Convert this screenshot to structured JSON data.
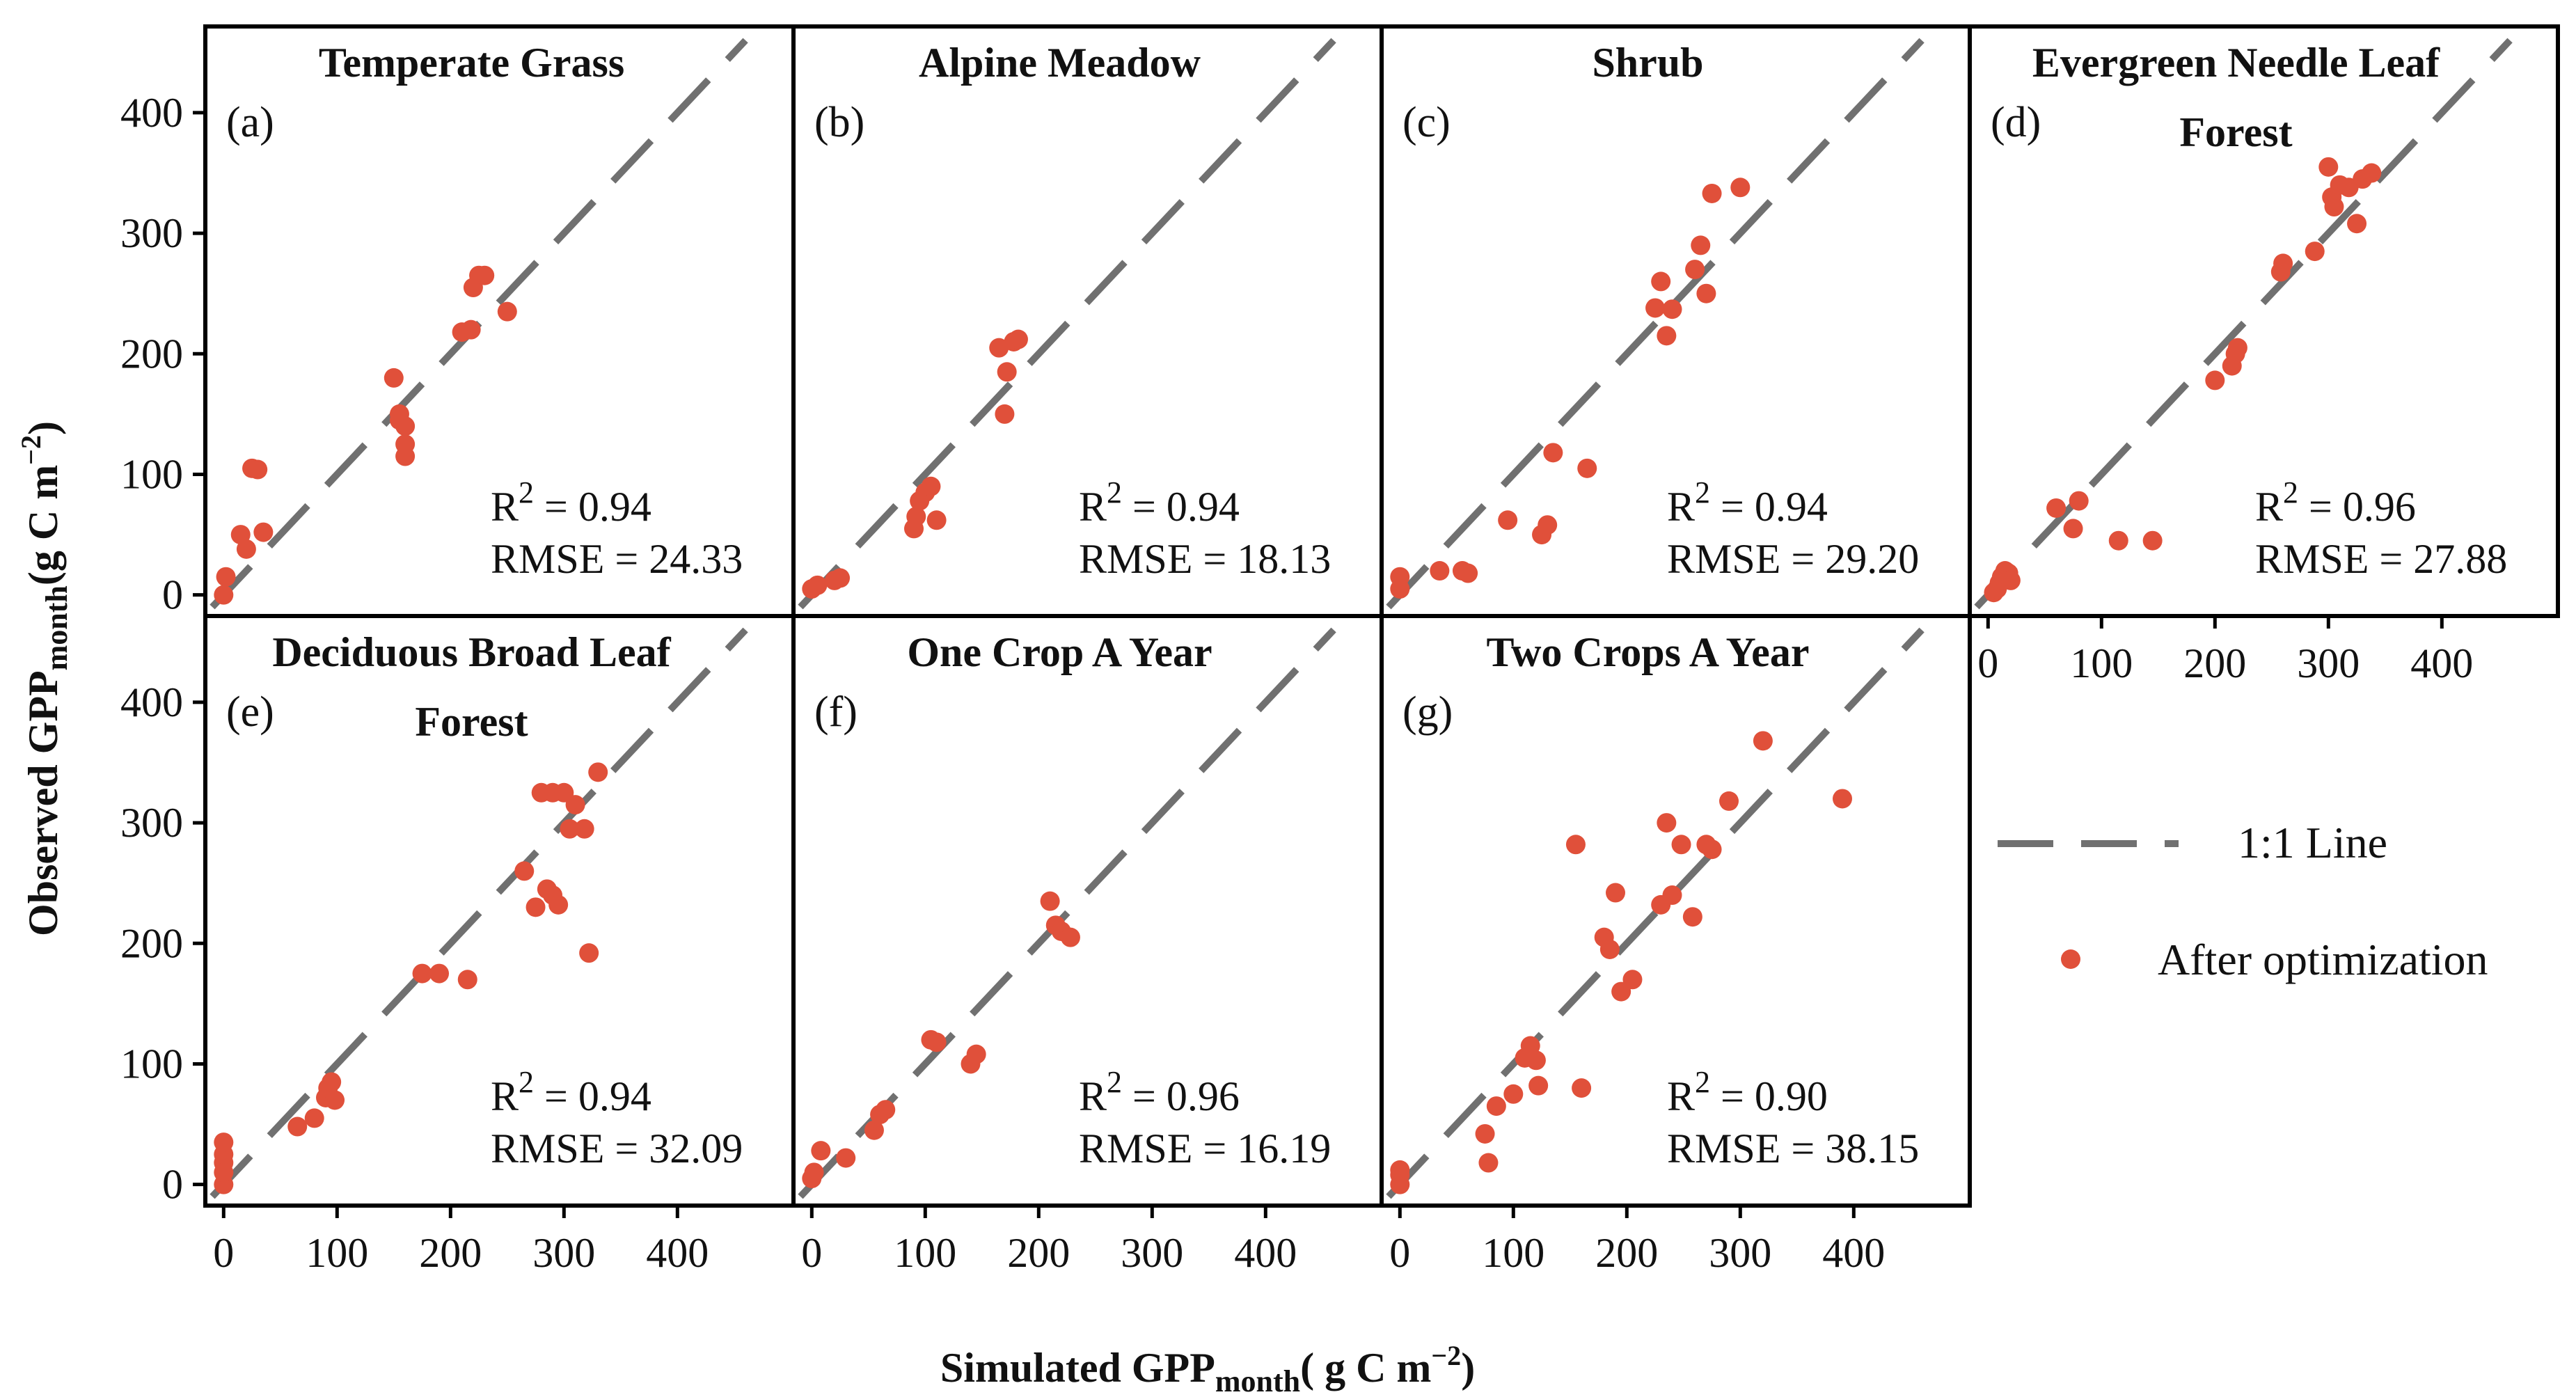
{
  "figure": {
    "xlabel": "Simulated GPP",
    "xlabel_sub": "month",
    "xlabel_unit": "( g C m",
    "xlabel_exp": "−2",
    "xlabel_close": ")",
    "ylabel": "Observed GPP",
    "ylabel_sub": "month",
    "ylabel_unit": "(g C m",
    "ylabel_exp": "−2",
    "ylabel_close": ")",
    "ticks": [
      "0",
      "100",
      "200",
      "300",
      "400"
    ],
    "legend": {
      "line_label": "1:1 Line",
      "points_label": "After optimization"
    },
    "colors": {
      "points": "#e0503a",
      "line": "#707070",
      "frame": "#000000"
    }
  },
  "chart_data": [
    {
      "id": "a",
      "type": "scatter",
      "title": [
        "Temperate Grass"
      ],
      "letter": "(a)",
      "r2_label": "R",
      "r2_exp": "2",
      "r2_value": " = 0.94",
      "rmse": "RMSE = 24.33",
      "xlim": [
        -10,
        490
      ],
      "ylim": [
        -10,
        460
      ],
      "one_to_one": true,
      "x": [
        0,
        2,
        15,
        20,
        25,
        30,
        35,
        150,
        155,
        160,
        160,
        160,
        155,
        210,
        218,
        220,
        225,
        230,
        250
      ],
      "y": [
        0,
        15,
        50,
        38,
        105,
        104,
        52,
        180,
        145,
        140,
        125,
        115,
        150,
        218,
        220,
        255,
        265,
        265,
        235
      ]
    },
    {
      "id": "b",
      "type": "scatter",
      "title": [
        "Alpine Meadow"
      ],
      "letter": "(b)",
      "r2_label": "R",
      "r2_exp": "2",
      "r2_value": " = 0.94",
      "rmse": "RMSE = 18.13",
      "xlim": [
        -10,
        490
      ],
      "ylim": [
        -10,
        460
      ],
      "one_to_one": true,
      "x": [
        0,
        5,
        20,
        25,
        90,
        92,
        95,
        100,
        105,
        110,
        165,
        170,
        172,
        178,
        182
      ],
      "y": [
        5,
        8,
        12,
        14,
        55,
        65,
        78,
        85,
        90,
        62,
        205,
        150,
        185,
        210,
        212
      ]
    },
    {
      "id": "c",
      "type": "scatter",
      "title": [
        "Shrub"
      ],
      "letter": "(c)",
      "r2_label": "R",
      "r2_exp": "2",
      "r2_value": " = 0.94",
      "rmse": "RMSE = 29.20",
      "xlim": [
        -10,
        490
      ],
      "ylim": [
        -10,
        460
      ],
      "one_to_one": true,
      "x": [
        0,
        0,
        35,
        55,
        60,
        95,
        125,
        130,
        135,
        165,
        225,
        230,
        235,
        240,
        260,
        265,
        270,
        275,
        300
      ],
      "y": [
        5,
        15,
        20,
        20,
        18,
        62,
        50,
        58,
        118,
        105,
        238,
        260,
        215,
        237,
        270,
        290,
        250,
        333,
        338
      ]
    },
    {
      "id": "d",
      "type": "scatter",
      "title": [
        "Evergreen Needle Leaf",
        "Forest"
      ],
      "letter": "(d)",
      "r2_label": "R",
      "r2_exp": "2",
      "r2_value": " = 0.96",
      "rmse": "RMSE = 27.88",
      "xlim": [
        -10,
        490
      ],
      "ylim": [
        -10,
        460
      ],
      "one_to_one": true,
      "x": [
        5,
        8,
        10,
        12,
        15,
        18,
        20,
        60,
        75,
        80,
        115,
        145,
        200,
        215,
        218,
        220,
        258,
        260,
        288,
        300,
        303,
        305,
        310,
        318,
        325,
        330,
        338
      ],
      "y": [
        2,
        5,
        10,
        15,
        20,
        18,
        12,
        72,
        55,
        78,
        45,
        45,
        178,
        190,
        200,
        205,
        268,
        275,
        285,
        355,
        330,
        322,
        340,
        338,
        308,
        345,
        350
      ]
    },
    {
      "id": "e",
      "type": "scatter",
      "title": [
        "Deciduous Broad Leaf",
        "Forest"
      ],
      "letter": "(e)",
      "r2_label": "R",
      "r2_exp": "2",
      "r2_value": " = 0.94",
      "rmse": "RMSE = 32.09",
      "xlim": [
        -10,
        490
      ],
      "ylim": [
        -10,
        460
      ],
      "one_to_one": true,
      "x": [
        0,
        0,
        0,
        0,
        0,
        65,
        80,
        90,
        92,
        95,
        98,
        175,
        190,
        215,
        265,
        275,
        280,
        285,
        290,
        290,
        295,
        300,
        305,
        310,
        318,
        322,
        330
      ],
      "y": [
        0,
        10,
        18,
        25,
        35,
        48,
        55,
        72,
        80,
        85,
        70,
        175,
        175,
        170,
        260,
        230,
        325,
        245,
        325,
        240,
        232,
        325,
        295,
        315,
        295,
        192,
        342
      ]
    },
    {
      "id": "f",
      "type": "scatter",
      "title": [
        "One Crop A Year"
      ],
      "letter": "(f)",
      "r2_label": "R",
      "r2_exp": "2",
      "r2_value": " = 0.96",
      "rmse": "RMSE = 16.19",
      "xlim": [
        -10,
        490
      ],
      "ylim": [
        -10,
        460
      ],
      "one_to_one": true,
      "x": [
        0,
        2,
        8,
        30,
        55,
        60,
        65,
        105,
        110,
        140,
        145,
        210,
        215,
        220,
        228
      ],
      "y": [
        5,
        10,
        28,
        22,
        45,
        58,
        62,
        120,
        118,
        100,
        108,
        235,
        215,
        210,
        205
      ]
    },
    {
      "id": "g",
      "type": "scatter",
      "title": [
        "Two Crops A Year"
      ],
      "letter": "(g)",
      "r2_label": "R",
      "r2_exp": "2",
      "r2_value": " = 0.90",
      "rmse": "RMSE = 38.15",
      "xlim": [
        -10,
        490
      ],
      "ylim": [
        -10,
        460
      ],
      "one_to_one": true,
      "x": [
        0,
        0,
        0,
        75,
        78,
        85,
        100,
        110,
        115,
        120,
        122,
        155,
        160,
        180,
        185,
        190,
        195,
        205,
        230,
        235,
        240,
        248,
        258,
        270,
        275,
        290,
        320,
        390
      ],
      "y": [
        0,
        8,
        12,
        42,
        18,
        65,
        75,
        105,
        115,
        103,
        82,
        282,
        80,
        205,
        195,
        242,
        160,
        170,
        232,
        300,
        240,
        282,
        222,
        282,
        278,
        318,
        368,
        320
      ]
    }
  ]
}
